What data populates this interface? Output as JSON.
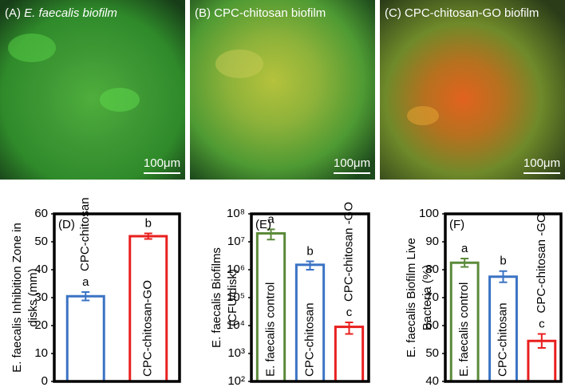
{
  "panels": [
    {
      "letter": "(A)",
      "title": "E. faecalis biofilm",
      "scale": "100μm"
    },
    {
      "letter": "(B)",
      "title": "CPC-chitosan biofilm",
      "scale": "100μm"
    },
    {
      "letter": "(C)",
      "title": "CPC-chitosan-GO biofilm",
      "scale": "100μm"
    }
  ],
  "chart_data": [
    {
      "type": "bar",
      "tag": "(D)",
      "ylabel": [
        "E. faecalis Inhibition Zone in",
        "disks (mm)"
      ],
      "categories": [
        "CPC-chitosan",
        "CPC-chitosan-GO"
      ],
      "colors": [
        "#3b73c4",
        "#e8201f"
      ],
      "values": [
        30.5,
        52
      ],
      "errors": [
        1.5,
        1
      ],
      "annotations": [
        "a",
        "b"
      ],
      "ylim": [
        0,
        60
      ],
      "yticks": [
        0,
        10,
        20,
        30,
        40,
        50,
        60
      ],
      "log": false
    },
    {
      "type": "bar",
      "tag": "(E)",
      "ylabel": [
        "E. faecalis Biofilms",
        "(CFU/disk)"
      ],
      "categories": [
        "E. faecalis control",
        "CPC-chitosan",
        "CPC-chitosan -GO"
      ],
      "colors": [
        "#5b8a3a",
        "#3b73c4",
        "#e8201f"
      ],
      "values": [
        20000000,
        1500000,
        9000
      ],
      "errors": [
        8000000,
        500000,
        4000
      ],
      "annotations": [
        "a",
        "b",
        "c"
      ],
      "ylim": [
        100,
        100000000
      ],
      "yticks": [
        {
          "value": 100,
          "label": "10²"
        },
        {
          "value": 1000,
          "label": "10³"
        },
        {
          "value": 10000,
          "label": "10⁴"
        },
        {
          "value": 100000,
          "label": "10⁵"
        },
        {
          "value": 1000000,
          "label": "10⁶"
        },
        {
          "value": 10000000,
          "label": "10⁷"
        },
        {
          "value": 100000000,
          "label": "10⁸"
        }
      ],
      "log": true
    },
    {
      "type": "bar",
      "tag": "(F)",
      "ylabel": [
        "E. faecalis Biofilm Live",
        "Bacteria (%)"
      ],
      "categories": [
        "E. faecalis control",
        "CPC-chitosan",
        "CPC-chitosan -GO"
      ],
      "colors": [
        "#5b8a3a",
        "#3b73c4",
        "#e8201f"
      ],
      "values": [
        82.5,
        77.5,
        54.5
      ],
      "errors": [
        1.5,
        2,
        2.5
      ],
      "annotations": [
        "a",
        "b",
        "c"
      ],
      "ylim": [
        40,
        100
      ],
      "yticks": [
        40,
        50,
        60,
        70,
        80,
        90,
        100
      ],
      "log": false
    }
  ]
}
